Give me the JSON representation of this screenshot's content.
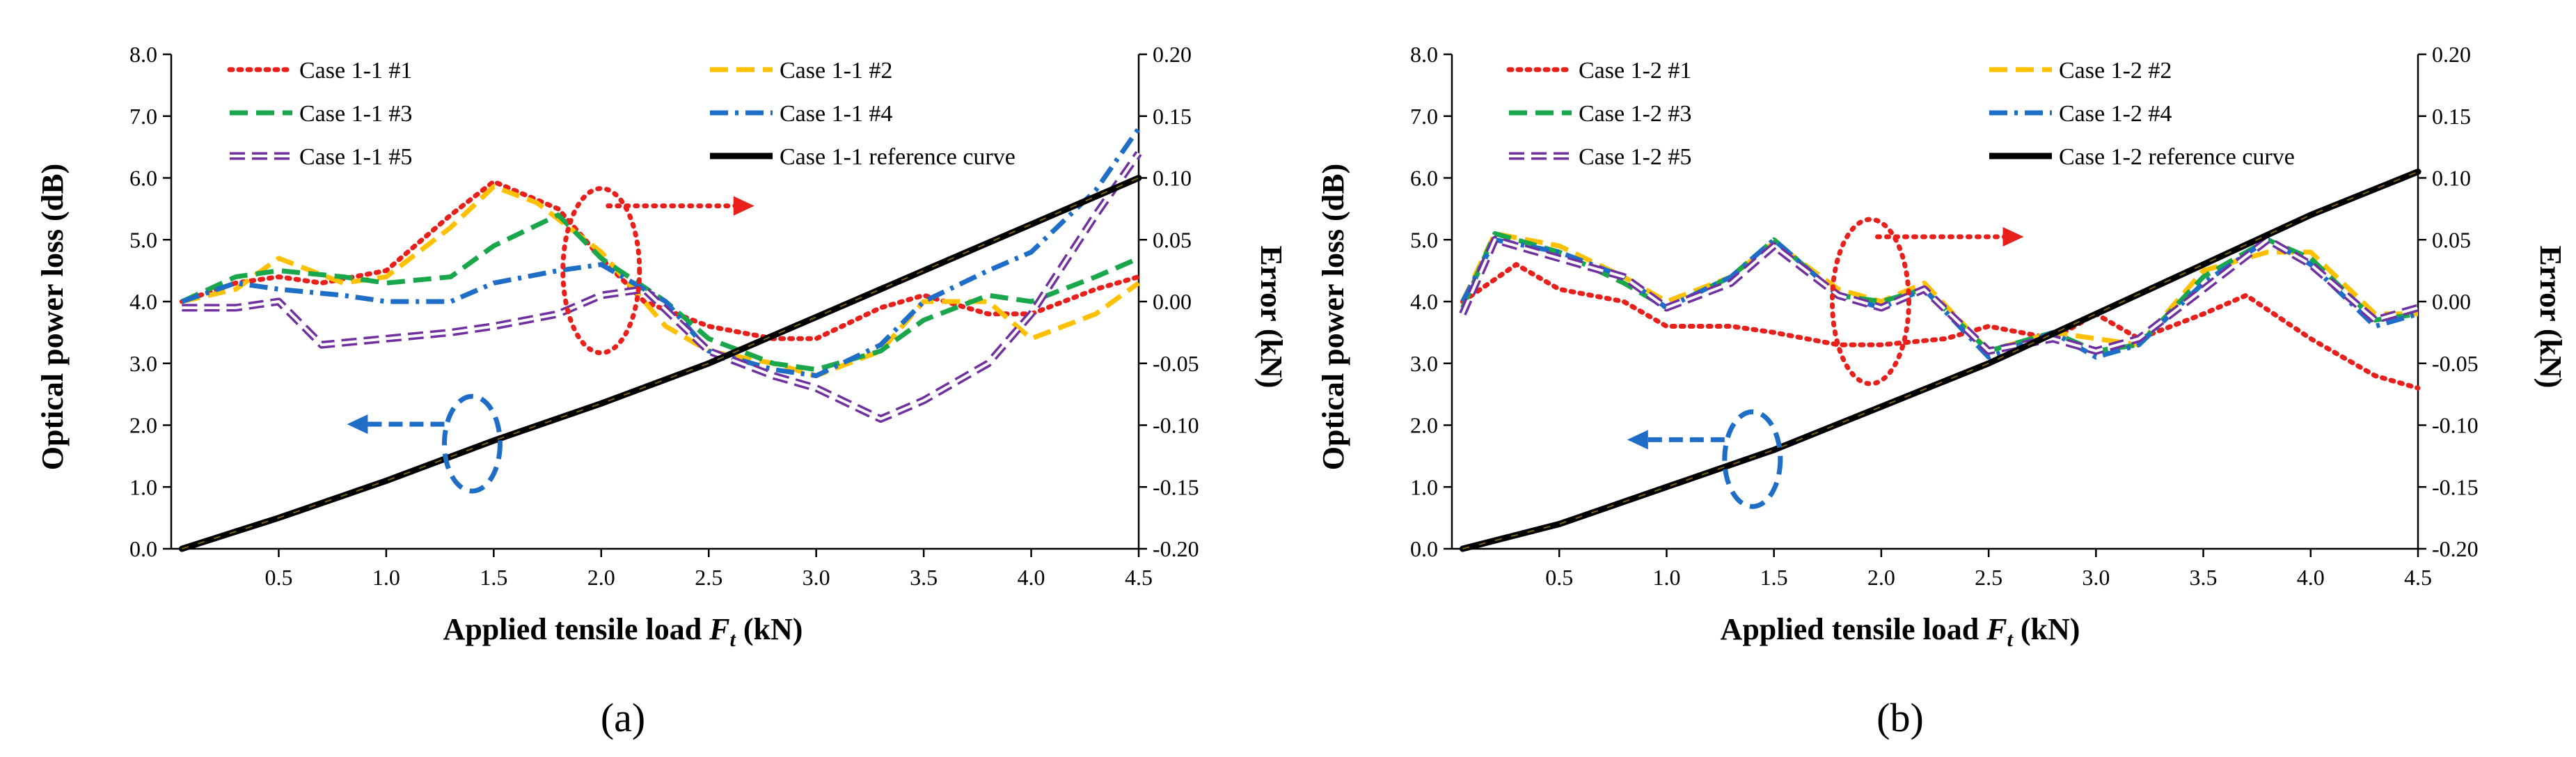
{
  "chart_data": [
    {
      "type": "line",
      "panel_label": "(a)",
      "xlabel_text": "Applied tensile load ",
      "xlabel_var": "F",
      "xlabel_sub": "t",
      "xlabel_unit": " (kN)",
      "ylabel_left": "Optical power loss (dB)",
      "ylabel_right": "Error (kN)",
      "xlim": [
        0.0,
        4.5
      ],
      "ylim_left": [
        0.0,
        8.0
      ],
      "ylim_right": [
        -0.2,
        0.2
      ],
      "x_ticks": [
        "0.5",
        "1.0",
        "1.5",
        "2.0",
        "2.5",
        "3.0",
        "3.5",
        "4.0",
        "4.5"
      ],
      "y_left_ticks": [
        "0.0",
        "1.0",
        "2.0",
        "3.0",
        "4.0",
        "5.0",
        "6.0",
        "7.0",
        "8.0"
      ],
      "y_right_ticks": [
        "-0.20",
        "-0.15",
        "-0.10",
        "-0.05",
        "0.00",
        "0.05",
        "0.10",
        "0.15",
        "0.20"
      ],
      "grid": false,
      "legend_position": "top",
      "reference_curve": {
        "name": "Case 1-1 reference curve",
        "color": "#000000",
        "x": [
          0.05,
          0.5,
          1.0,
          1.5,
          2.0,
          2.5,
          3.0,
          3.5,
          4.0,
          4.5
        ],
        "y": [
          0.0,
          0.5,
          1.1,
          1.75,
          2.35,
          3.0,
          3.75,
          4.5,
          5.25,
          6.0
        ]
      },
      "error_series": [
        {
          "name": "Case 1-1 #1",
          "color": "#e8201c",
          "style": "dotted",
          "x": [
            0.05,
            0.3,
            0.5,
            0.7,
            1.0,
            1.3,
            1.5,
            1.8,
            2.0,
            2.2,
            2.5,
            2.8,
            3.0,
            3.3,
            3.5,
            3.8,
            4.0,
            4.3,
            4.5
          ],
          "y": [
            0.0,
            0.015,
            0.02,
            0.015,
            0.025,
            0.07,
            0.097,
            0.075,
            0.035,
            0.0,
            -0.02,
            -0.03,
            -0.03,
            -0.005,
            0.005,
            -0.01,
            -0.01,
            0.01,
            0.02
          ]
        },
        {
          "name": "Case 1-1 #2",
          "color": "#ffc000",
          "style": "dashed",
          "x": [
            0.05,
            0.3,
            0.5,
            0.8,
            1.0,
            1.3,
            1.5,
            1.7,
            2.0,
            2.3,
            2.5,
            2.8,
            3.0,
            3.3,
            3.5,
            3.8,
            4.0,
            4.3,
            4.5
          ],
          "y": [
            0.0,
            0.01,
            0.035,
            0.015,
            0.02,
            0.06,
            0.093,
            0.08,
            0.04,
            -0.02,
            -0.04,
            -0.05,
            -0.06,
            -0.04,
            0.0,
            0.0,
            -0.03,
            -0.01,
            0.015
          ]
        },
        {
          "name": "Case 1-1 #3",
          "color": "#1aa64a",
          "style": "dashed",
          "x": [
            0.05,
            0.3,
            0.5,
            0.8,
            1.0,
            1.3,
            1.5,
            1.8,
            2.0,
            2.3,
            2.5,
            2.8,
            3.0,
            3.3,
            3.5,
            3.8,
            4.0,
            4.3,
            4.5
          ],
          "y": [
            0.0,
            0.02,
            0.025,
            0.02,
            0.015,
            0.02,
            0.045,
            0.07,
            0.035,
            0.0,
            -0.03,
            -0.05,
            -0.055,
            -0.04,
            -0.015,
            0.005,
            0.0,
            0.02,
            0.035
          ]
        },
        {
          "name": "Case 1-1 #4",
          "color": "#1e6ec8",
          "style": "dashdot",
          "x": [
            0.05,
            0.3,
            0.5,
            0.8,
            1.0,
            1.3,
            1.5,
            1.8,
            2.0,
            2.3,
            2.5,
            2.8,
            3.0,
            3.3,
            3.5,
            3.8,
            4.0,
            4.3,
            4.5
          ],
          "y": [
            0.0,
            0.015,
            0.01,
            0.005,
            0.0,
            0.0,
            0.015,
            0.025,
            0.03,
            0.0,
            -0.04,
            -0.055,
            -0.06,
            -0.035,
            0.0,
            0.025,
            0.04,
            0.09,
            0.14
          ]
        },
        {
          "name": "Case 1-1 #5",
          "color": "#7030a0",
          "style": "double",
          "x": [
            0.05,
            0.3,
            0.5,
            0.7,
            1.0,
            1.3,
            1.5,
            1.8,
            2.0,
            2.2,
            2.5,
            2.8,
            3.0,
            3.3,
            3.5,
            3.8,
            4.0,
            4.3,
            4.5
          ],
          "y": [
            -0.005,
            -0.005,
            0.0,
            -0.035,
            -0.03,
            -0.025,
            -0.02,
            -0.01,
            0.005,
            0.01,
            -0.04,
            -0.06,
            -0.07,
            -0.095,
            -0.08,
            -0.05,
            -0.01,
            0.07,
            0.12
          ]
        }
      ],
      "annotations": [
        {
          "kind": "ellipse-arrow",
          "color": "#e8201c",
          "style": "dotted",
          "x": 2.0,
          "y_right": 0.025,
          "direction": "right"
        },
        {
          "kind": "ellipse-arrow",
          "color": "#1e6ec8",
          "style": "dashed",
          "x": 1.4,
          "y_left": 1.7,
          "direction": "left"
        }
      ]
    },
    {
      "type": "line",
      "panel_label": "(b)",
      "xlabel_text": "Applied tensile load ",
      "xlabel_var": "F",
      "xlabel_sub": "t",
      "xlabel_unit": " (kN)",
      "ylabel_left": "Optical power loss (dB)",
      "ylabel_right": "Error (kN)",
      "xlim": [
        0.0,
        4.5
      ],
      "ylim_left": [
        0.0,
        8.0
      ],
      "ylim_right": [
        -0.2,
        0.2
      ],
      "x_ticks": [
        "0.5",
        "1.0",
        "1.5",
        "2.0",
        "2.5",
        "3.0",
        "3.5",
        "4.0",
        "4.5"
      ],
      "y_left_ticks": [
        "0.0",
        "1.0",
        "2.0",
        "3.0",
        "4.0",
        "5.0",
        "6.0",
        "7.0",
        "8.0"
      ],
      "y_right_ticks": [
        "-0.20",
        "-0.15",
        "-0.10",
        "-0.05",
        "0.00",
        "0.05",
        "0.10",
        "0.15",
        "0.20"
      ],
      "grid": false,
      "legend_position": "top",
      "reference_curve": {
        "name": "Case 1-2 reference curve",
        "color": "#000000",
        "x": [
          0.05,
          0.5,
          1.0,
          1.5,
          2.0,
          2.5,
          3.0,
          3.5,
          4.0,
          4.5
        ],
        "y": [
          0.0,
          0.4,
          1.0,
          1.6,
          2.3,
          3.0,
          3.8,
          4.6,
          5.4,
          6.1
        ]
      },
      "error_series": [
        {
          "name": "Case 1-2 #1",
          "color": "#e8201c",
          "style": "dotted",
          "x": [
            0.05,
            0.3,
            0.5,
            0.8,
            1.0,
            1.3,
            1.5,
            1.8,
            2.0,
            2.3,
            2.5,
            2.8,
            3.0,
            3.2,
            3.5,
            3.7,
            4.0,
            4.3,
            4.5
          ],
          "y": [
            0.0,
            0.03,
            0.01,
            0.0,
            -0.02,
            -0.02,
            -0.025,
            -0.035,
            -0.035,
            -0.03,
            -0.02,
            -0.03,
            -0.01,
            -0.03,
            -0.01,
            0.005,
            -0.03,
            -0.06,
            -0.07
          ]
        },
        {
          "name": "Case 1-2 #2",
          "color": "#ffc000",
          "style": "dashed",
          "x": [
            0.05,
            0.2,
            0.5,
            0.8,
            1.0,
            1.3,
            1.5,
            1.8,
            2.0,
            2.2,
            2.5,
            2.8,
            3.0,
            3.2,
            3.5,
            3.8,
            4.0,
            4.3,
            4.5
          ],
          "y": [
            0.0,
            0.055,
            0.045,
            0.02,
            0.0,
            0.02,
            0.048,
            0.01,
            0.0,
            0.015,
            -0.04,
            -0.025,
            -0.03,
            -0.035,
            0.025,
            0.04,
            0.04,
            -0.01,
            -0.01
          ]
        },
        {
          "name": "Case 1-2 #3",
          "color": "#1aa64a",
          "style": "dashed",
          "x": [
            0.05,
            0.2,
            0.5,
            0.8,
            1.0,
            1.3,
            1.5,
            1.8,
            2.0,
            2.2,
            2.5,
            2.8,
            3.0,
            3.2,
            3.5,
            3.8,
            4.0,
            4.3,
            4.5
          ],
          "y": [
            -0.005,
            0.055,
            0.04,
            0.015,
            -0.005,
            0.02,
            0.05,
            0.005,
            0.0,
            0.01,
            -0.04,
            -0.025,
            -0.04,
            -0.035,
            0.02,
            0.05,
            0.035,
            -0.015,
            -0.01
          ]
        },
        {
          "name": "Case 1-2 #4",
          "color": "#1e6ec8",
          "style": "dashdot",
          "x": [
            0.05,
            0.2,
            0.5,
            0.8,
            1.0,
            1.3,
            1.5,
            1.8,
            2.0,
            2.2,
            2.5,
            2.8,
            3.0,
            3.2,
            3.5,
            3.8,
            4.0,
            4.3,
            4.5
          ],
          "y": [
            0.0,
            0.05,
            0.04,
            0.02,
            -0.005,
            0.02,
            0.05,
            0.005,
            -0.005,
            0.01,
            -0.045,
            -0.025,
            -0.045,
            -0.035,
            0.015,
            0.05,
            0.03,
            -0.02,
            -0.01
          ]
        },
        {
          "name": "Case 1-2 #5",
          "color": "#7030a0",
          "style": "double",
          "x": [
            0.05,
            0.2,
            0.5,
            0.8,
            1.0,
            1.3,
            1.5,
            1.8,
            2.0,
            2.2,
            2.5,
            2.8,
            3.0,
            3.2,
            3.5,
            3.8,
            4.0,
            4.3,
            4.5
          ],
          "y": [
            -0.01,
            0.05,
            0.035,
            0.02,
            -0.005,
            0.015,
            0.045,
            0.005,
            -0.005,
            0.01,
            -0.04,
            -0.03,
            -0.04,
            -0.03,
            0.01,
            0.05,
            0.03,
            -0.015,
            -0.005
          ]
        }
      ],
      "annotations": [
        {
          "kind": "ellipse-arrow",
          "color": "#e8201c",
          "style": "dotted",
          "x": 1.95,
          "y_right": 0.0,
          "direction": "right"
        },
        {
          "kind": "ellipse-arrow",
          "color": "#1e6ec8",
          "style": "dashed",
          "x": 1.4,
          "y_left": 1.45,
          "direction": "left"
        }
      ]
    }
  ]
}
